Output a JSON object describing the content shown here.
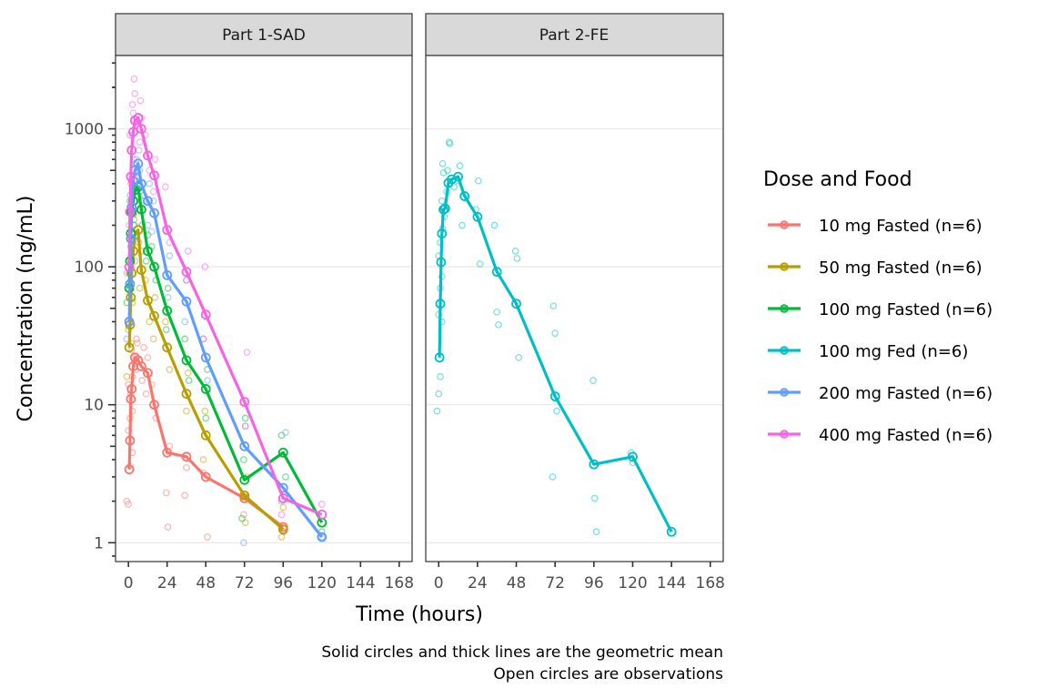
{
  "chart_data": {
    "type": "line",
    "scale_y": "log10",
    "xlabel": "Time (hours)",
    "ylabel": "Concentration (ng/mL)",
    "x_ticks": [
      0,
      24,
      48,
      72,
      96,
      120,
      144,
      168
    ],
    "x_tick_labels": [
      "0",
      "24",
      "48",
      "72",
      "96",
      "120",
      "144",
      "168"
    ],
    "xlim": [
      -8,
      176
    ],
    "y_ticks": [
      1,
      10,
      100,
      1000
    ],
    "y_tick_labels": [
      "1",
      "10",
      "100",
      "1000"
    ],
    "ylim": [
      0.73,
      3400
    ],
    "grid": "horizontal major",
    "legend": {
      "title": "Dose and Food",
      "placement": "right",
      "entries": [
        {
          "label": "10 mg Fasted (n=6)",
          "color": "#F8766D"
        },
        {
          "label": "50 mg Fasted (n=6)",
          "color": "#B79F00"
        },
        {
          "label": "100 mg Fasted (n=6)",
          "color": "#00BA38"
        },
        {
          "label": "100 mg Fed (n=6)",
          "color": "#00BFC4"
        },
        {
          "label": "200 mg Fasted (n=6)",
          "color": "#619CFF"
        },
        {
          "label": "400 mg Fasted (n=6)",
          "color": "#F564E3"
        }
      ]
    },
    "caption": [
      "Solid circles and thick lines are the geometric mean",
      "Open circles are observations"
    ],
    "panels": [
      {
        "title": "Part 1-SAD",
        "series": [
          {
            "name": "10 mg Fasted (n=6)",
            "color": "#F8766D",
            "mean": {
              "x": [
                0.5,
                1,
                1.5,
                2,
                3,
                4,
                6,
                8,
                12,
                16,
                24,
                36,
                48,
                72,
                96
              ],
              "y": [
                3.4,
                5.5,
                11,
                13,
                19,
                22,
                21,
                19,
                17,
                10,
                4.5,
                4.2,
                3.0,
                2.1,
                1.3
              ]
            },
            "obs": {
              "x": [
                0.5,
                0.5,
                0.5,
                1,
                1,
                1,
                1.5,
                1.5,
                2,
                2,
                3,
                3,
                4,
                4,
                6,
                6,
                8,
                8,
                12,
                12,
                16,
                16,
                24,
                24,
                24,
                36,
                36,
                48,
                48,
                72,
                96
              ],
              "y": [
                2.0,
                1.9,
                3.6,
                4.5,
                6.5,
                8,
                9,
                14,
                12,
                16,
                18,
                25,
                20,
                30,
                22,
                28,
                15,
                26,
                12,
                22,
                8,
                14,
                2.3,
                1.3,
                5,
                2.2,
                3.5,
                1.1,
                3.2,
                1.6,
                1.2
              ]
            }
          },
          {
            "name": "50 mg Fasted (n=6)",
            "color": "#B79F00",
            "mean": {
              "x": [
                0.5,
                1,
                1.5,
                2,
                3,
                4,
                6,
                8,
                12,
                16,
                24,
                36,
                48,
                72,
                96
              ],
              "y": [
                26,
                38,
                60,
                90,
                130,
                170,
                185,
                95,
                57,
                44,
                26,
                12,
                6,
                2.2,
                1.25
              ]
            },
            "obs": {
              "x": [
                0.5,
                0.5,
                1,
                1,
                2,
                2,
                3,
                3,
                4,
                6,
                6,
                8,
                8,
                12,
                12,
                16,
                16,
                24,
                24,
                36,
                36,
                48,
                48,
                72,
                72,
                96,
                96
              ],
              "y": [
                16,
                35,
                28,
                55,
                70,
                120,
                110,
                160,
                220,
                150,
                260,
                70,
                130,
                40,
                80,
                30,
                60,
                18,
                40,
                9,
                17,
                4,
                9,
                1.4,
                3,
                1.1,
                1.8
              ]
            }
          },
          {
            "name": "100 mg Fasted (n=6)",
            "color": "#00BA38",
            "mean": {
              "x": [
                0.5,
                1,
                1.5,
                2,
                3,
                4,
                6,
                8,
                12,
                16,
                24,
                36,
                48,
                72,
                96,
                120
              ],
              "y": [
                70,
                110,
                175,
                250,
                300,
                360,
                380,
                260,
                130,
                100,
                48,
                21,
                13,
                2.85,
                4.5,
                1.4
              ]
            },
            "obs": {
              "x": [
                0.5,
                1,
                1,
                2,
                2,
                3,
                4,
                6,
                6,
                8,
                8,
                12,
                12,
                16,
                16,
                24,
                24,
                36,
                36,
                48,
                48,
                72,
                72,
                72,
                96,
                96,
                120
              ],
              "y": [
                55,
                90,
                140,
                200,
                300,
                240,
                420,
                300,
                480,
                200,
                330,
                110,
                170,
                80,
                140,
                35,
                70,
                15,
                30,
                8,
                18,
                1.5,
                4,
                8,
                3,
                6,
                1.2
              ]
            }
          },
          {
            "name": "200 mg Fasted (n=6)",
            "color": "#619CFF",
            "mean": {
              "x": [
                0.5,
                1,
                1.5,
                2,
                3,
                4,
                6,
                8,
                12,
                16,
                24,
                36,
                48,
                72,
                96,
                120
              ],
              "y": [
                40,
                75,
                160,
                270,
                420,
                500,
                560,
                400,
                300,
                245,
                87,
                56,
                22,
                5,
                2.5,
                1.1
              ]
            },
            "obs": {
              "x": [
                0.5,
                1,
                1,
                2,
                2,
                3,
                4,
                4,
                6,
                6,
                8,
                8,
                12,
                12,
                16,
                16,
                24,
                24,
                36,
                36,
                48,
                48,
                72,
                72,
                96,
                96,
                120
              ],
              "y": [
                30,
                60,
                110,
                200,
                330,
                350,
                600,
                900,
                400,
                700,
                300,
                500,
                200,
                400,
                180,
                300,
                60,
                120,
                40,
                80,
                15,
                30,
                1.0,
                7,
                6.3,
                2.0,
                1.1
              ]
            }
          },
          {
            "name": "400 mg Fasted (n=6)",
            "color": "#F564E3",
            "mean": {
              "x": [
                0.5,
                1,
                1.5,
                2,
                3,
                4,
                6,
                8,
                12,
                16,
                24,
                36,
                48,
                72,
                96,
                120
              ],
              "y": [
                100,
                250,
                450,
                700,
                950,
                1150,
                1200,
                1000,
                640,
                460,
                185,
                92,
                45,
                10.5,
                2.1,
                1.6
              ]
            },
            "obs": {
              "x": [
                0.5,
                1,
                1,
                2,
                2,
                3,
                3,
                4,
                4,
                6,
                6,
                8,
                8,
                12,
                12,
                16,
                16,
                24,
                24,
                36,
                36,
                48,
                48,
                72,
                72,
                96,
                120
              ],
              "y": [
                90,
                200,
                400,
                600,
                900,
                1300,
                1800,
                1500,
                2300,
                1100,
                1600,
                800,
                1200,
                500,
                900,
                350,
                600,
                150,
                380,
                80,
                130,
                30,
                100,
                7,
                24,
                1.6,
                1.9
              ]
            }
          }
        ]
      },
      {
        "title": "Part 2-FE",
        "series": [
          {
            "name": "100 mg Fed (n=6)",
            "color": "#00BFC4",
            "mean": {
              "x": [
                0.5,
                1,
                1.5,
                2,
                3,
                4,
                6,
                8,
                12,
                16,
                24,
                36,
                48,
                72,
                96,
                120,
                144
              ],
              "y": [
                22,
                54,
                108,
                174,
                260,
                265,
                405,
                430,
                450,
                325,
                230,
                92,
                54,
                11.5,
                3.7,
                4.2,
                1.2
              ]
            },
            "obs": {
              "x": [
                0.5,
                0.5,
                0.5,
                0.5,
                1,
                1,
                1,
                1.5,
                1.5,
                2,
                2,
                3,
                3,
                4,
                4,
                6,
                6,
                8,
                8,
                12,
                12,
                16,
                16,
                24,
                24,
                24,
                36,
                36,
                36,
                48,
                48,
                48,
                72,
                72,
                72,
                72,
                96,
                96,
                96,
                120,
                120
              ],
              "y": [
                9,
                12,
                16,
                40,
                45,
                70,
                85,
                120,
                150,
                190,
                230,
                300,
                480,
                350,
                560,
                500,
                800,
                380,
                780,
                420,
                540,
                200,
                320,
                420,
                105,
                260,
                47,
                38,
                200,
                130,
                115,
                22,
                52,
                33,
                9,
                3,
                15,
                2.1,
                1.2,
                4.5,
                3.8
              ]
            }
          }
        ]
      }
    ]
  }
}
